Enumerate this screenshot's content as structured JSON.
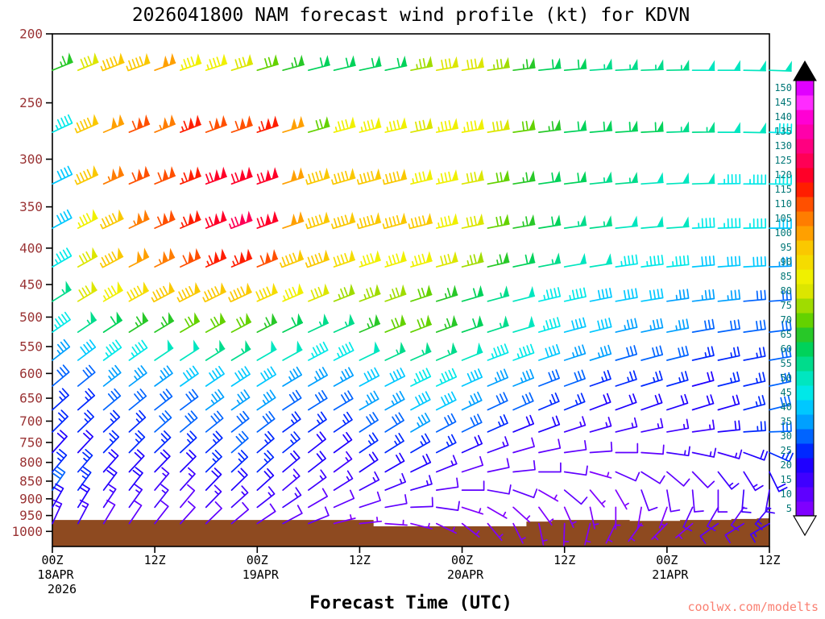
{
  "chart_data": {
    "type": "wind-barb-time-height",
    "title": "2026041800 NAM forecast wind profile (kt) for KDVN",
    "watermark": "coolwx.com/modelts",
    "x_axis": {
      "label": "Forecast Time (UTC)",
      "range_hours": [
        0,
        84
      ],
      "tick_hours": [
        0,
        12,
        24,
        36,
        48,
        60,
        72,
        84
      ],
      "tick_labels": [
        "00Z",
        "12Z",
        "00Z",
        "12Z",
        "00Z",
        "12Z",
        "00Z",
        "12Z"
      ],
      "date_labels": [
        {
          "hour": 0,
          "label": "18APR",
          "sub": "2026"
        },
        {
          "hour": 24,
          "label": "19APR"
        },
        {
          "hour": 48,
          "label": "20APR"
        },
        {
          "hour": 72,
          "label": "21APR"
        }
      ]
    },
    "y_axis": {
      "unit": "hPa",
      "scale": "log",
      "range": [
        200,
        1050
      ],
      "ticks": [
        200,
        250,
        300,
        350,
        400,
        450,
        500,
        550,
        600,
        650,
        700,
        750,
        800,
        850,
        900,
        950,
        1000
      ]
    },
    "barbs": {
      "time_hours": [
        0,
        3,
        6,
        9,
        12,
        15,
        18,
        21,
        24,
        27,
        30,
        33,
        36,
        39,
        42,
        45,
        48,
        51,
        54,
        57,
        60,
        63,
        66,
        69,
        72,
        75,
        78,
        81,
        84
      ],
      "levels_hpa": [
        225,
        275,
        325,
        375,
        425,
        475,
        525,
        575,
        625,
        675,
        725,
        775,
        825,
        875,
        925,
        975
      ],
      "speeds_kt": [
        [
          65,
          80,
          95,
          95,
          100,
          85,
          85,
          80,
          70,
          65,
          60,
          60,
          60,
          60,
          75,
          80,
          80,
          75,
          65,
          60,
          60,
          55,
          55,
          55,
          55,
          50,
          50,
          50,
          50
        ],
        [
          45,
          95,
          100,
          110,
          105,
          115,
          110,
          110,
          115,
          100,
          70,
          85,
          85,
          85,
          80,
          85,
          85,
          80,
          70,
          65,
          60,
          60,
          60,
          60,
          55,
          55,
          50,
          50,
          45
        ],
        [
          40,
          95,
          105,
          110,
          110,
          115,
          120,
          120,
          120,
          100,
          95,
          95,
          95,
          95,
          85,
          85,
          80,
          70,
          65,
          60,
          60,
          55,
          55,
          50,
          50,
          50,
          45,
          45,
          45
        ],
        [
          40,
          85,
          95,
          105,
          110,
          115,
          120,
          125,
          120,
          100,
          95,
          95,
          95,
          95,
          95,
          85,
          80,
          70,
          65,
          60,
          55,
          55,
          50,
          50,
          50,
          45,
          45,
          45,
          40
        ],
        [
          45,
          80,
          95,
          100,
          105,
          110,
          115,
          115,
          110,
          95,
          95,
          90,
          85,
          85,
          85,
          80,
          75,
          65,
          60,
          55,
          50,
          50,
          45,
          45,
          45,
          40,
          40,
          40,
          35
        ],
        [
          55,
          80,
          85,
          90,
          95,
          95,
          95,
          95,
          90,
          85,
          80,
          75,
          75,
          75,
          70,
          65,
          60,
          55,
          50,
          45,
          45,
          40,
          40,
          40,
          35,
          35,
          35,
          30,
          30
        ],
        [
          45,
          55,
          60,
          65,
          65,
          70,
          70,
          70,
          65,
          60,
          55,
          55,
          65,
          70,
          70,
          65,
          60,
          55,
          50,
          45,
          40,
          40,
          35,
          35,
          35,
          30,
          30,
          30,
          30
        ],
        [
          35,
          40,
          45,
          45,
          50,
          50,
          55,
          55,
          50,
          50,
          45,
          45,
          50,
          55,
          55,
          55,
          50,
          45,
          45,
          40,
          35,
          35,
          30,
          30,
          30,
          25,
          25,
          25,
          30
        ],
        [
          30,
          30,
          35,
          35,
          35,
          40,
          40,
          40,
          40,
          35,
          35,
          35,
          40,
          40,
          45,
          45,
          40,
          35,
          35,
          30,
          30,
          25,
          25,
          25,
          25,
          20,
          25,
          25,
          30
        ],
        [
          25,
          25,
          30,
          30,
          30,
          30,
          35,
          35,
          35,
          30,
          30,
          30,
          35,
          35,
          40,
          40,
          35,
          30,
          30,
          25,
          25,
          20,
          20,
          20,
          20,
          20,
          20,
          25,
          30
        ],
        [
          25,
          25,
          25,
          25,
          30,
          30,
          30,
          30,
          30,
          25,
          25,
          25,
          30,
          30,
          35,
          30,
          30,
          25,
          20,
          20,
          15,
          15,
          15,
          15,
          15,
          15,
          20,
          25,
          30
        ],
        [
          20,
          20,
          25,
          25,
          25,
          25,
          25,
          30,
          25,
          25,
          20,
          20,
          25,
          25,
          25,
          25,
          20,
          15,
          10,
          10,
          10,
          10,
          10,
          10,
          15,
          15,
          15,
          20,
          25
        ],
        [
          25,
          25,
          20,
          20,
          20,
          20,
          25,
          25,
          25,
          20,
          20,
          15,
          20,
          20,
          20,
          15,
          10,
          10,
          10,
          10,
          10,
          5,
          10,
          10,
          10,
          10,
          15,
          15,
          20
        ],
        [
          30,
          25,
          20,
          20,
          15,
          15,
          20,
          20,
          20,
          15,
          15,
          15,
          15,
          15,
          15,
          10,
          10,
          10,
          10,
          5,
          10,
          5,
          5,
          10,
          10,
          10,
          10,
          15,
          15
        ],
        [
          20,
          20,
          15,
          15,
          15,
          10,
          15,
          15,
          15,
          15,
          10,
          10,
          10,
          10,
          10,
          10,
          5,
          5,
          5,
          5,
          5,
          5,
          5,
          5,
          5,
          10,
          10,
          10,
          15
        ],
        [
          15,
          15,
          10,
          10,
          10,
          10,
          10,
          10,
          10,
          10,
          10,
          5,
          5,
          5,
          5,
          5,
          5,
          5,
          5,
          5,
          5,
          5,
          5,
          5,
          5,
          5,
          10,
          10,
          15
        ]
      ],
      "dirs_from_deg": [
        [
          248,
          248,
          249,
          250,
          250,
          251,
          252,
          253,
          254,
          255,
          256,
          257,
          258,
          258,
          259,
          260,
          261,
          262,
          263,
          264,
          265,
          266,
          267,
          268,
          269,
          270,
          270,
          271,
          272
        ],
        [
          245,
          246,
          247,
          248,
          248,
          249,
          250,
          251,
          252,
          253,
          254,
          255,
          256,
          257,
          258,
          259,
          260,
          261,
          262,
          263,
          264,
          265,
          266,
          267,
          268,
          269,
          270,
          271,
          272
        ],
        [
          244,
          245,
          246,
          247,
          248,
          249,
          250,
          250,
          251,
          252,
          253,
          254,
          255,
          256,
          257,
          258,
          259,
          260,
          261,
          262,
          263,
          264,
          265,
          266,
          267,
          268,
          269,
          270,
          271
        ],
        [
          242,
          243,
          244,
          245,
          246,
          247,
          248,
          249,
          250,
          251,
          252,
          253,
          254,
          255,
          256,
          257,
          258,
          259,
          260,
          261,
          262,
          263,
          264,
          265,
          266,
          267,
          268,
          269,
          270
        ],
        [
          240,
          241,
          242,
          243,
          244,
          245,
          246,
          247,
          248,
          249,
          250,
          251,
          252,
          253,
          254,
          255,
          256,
          257,
          258,
          259,
          260,
          261,
          262,
          263,
          264,
          265,
          266,
          267,
          268
        ],
        [
          238,
          239,
          240,
          241,
          242,
          243,
          244,
          245,
          246,
          247,
          248,
          249,
          250,
          251,
          252,
          253,
          254,
          255,
          256,
          257,
          258,
          259,
          260,
          261,
          262,
          263,
          264,
          265,
          266
        ],
        [
          235,
          236,
          237,
          238,
          239,
          240,
          241,
          242,
          243,
          244,
          245,
          246,
          247,
          248,
          249,
          250,
          251,
          252,
          253,
          254,
          255,
          256,
          257,
          258,
          259,
          260,
          261,
          262,
          263
        ],
        [
          232,
          233,
          234,
          235,
          236,
          237,
          238,
          239,
          240,
          241,
          242,
          243,
          244,
          245,
          246,
          247,
          248,
          249,
          250,
          251,
          252,
          253,
          254,
          255,
          256,
          257,
          258,
          259,
          260
        ],
        [
          230,
          231,
          232,
          233,
          234,
          235,
          236,
          237,
          238,
          239,
          240,
          241,
          242,
          243,
          244,
          245,
          246,
          247,
          248,
          249,
          250,
          251,
          252,
          253,
          254,
          255,
          256,
          257,
          258
        ],
        [
          228,
          229,
          230,
          231,
          232,
          233,
          234,
          235,
          236,
          237,
          238,
          239,
          240,
          241,
          242,
          243,
          244,
          245,
          246,
          247,
          248,
          249,
          250,
          251,
          252,
          253,
          254,
          255,
          256
        ],
        [
          225,
          226,
          227,
          228,
          229,
          230,
          231,
          232,
          233,
          234,
          235,
          236,
          237,
          238,
          240,
          242,
          244,
          246,
          248,
          250,
          252,
          254,
          256,
          258,
          260,
          262,
          264,
          266,
          268
        ],
        [
          222,
          223,
          224,
          225,
          226,
          227,
          228,
          229,
          230,
          231,
          232,
          234,
          236,
          238,
          240,
          243,
          246,
          250,
          254,
          258,
          262,
          266,
          270,
          274,
          278,
          282,
          286,
          290,
          294
        ],
        [
          220,
          221,
          222,
          223,
          224,
          225,
          226,
          227,
          228,
          230,
          232,
          234,
          236,
          240,
          244,
          248,
          252,
          258,
          264,
          270,
          278,
          286,
          294,
          302,
          310,
          316,
          322,
          328,
          334
        ],
        [
          215,
          216,
          217,
          218,
          220,
          222,
          224,
          226,
          228,
          230,
          234,
          238,
          242,
          248,
          254,
          262,
          270,
          280,
          290,
          300,
          310,
          320,
          330,
          340,
          350,
          355,
          0,
          5,
          10
        ],
        [
          210,
          212,
          214,
          216,
          218,
          220,
          224,
          228,
          232,
          236,
          240,
          246,
          252,
          260,
          268,
          278,
          288,
          300,
          312,
          324,
          336,
          348,
          0,
          10,
          20,
          25,
          30,
          35,
          40
        ],
        [
          205,
          208,
          211,
          214,
          218,
          222,
          226,
          230,
          236,
          242,
          248,
          256,
          264,
          274,
          284,
          296,
          308,
          320,
          334,
          348,
          2,
          14,
          26,
          36,
          44,
          50,
          55,
          58,
          60
        ]
      ]
    },
    "terrain_surface_hpa": [
      965,
      965,
      965,
      965,
      965,
      965,
      965,
      965,
      965,
      965,
      965,
      965,
      965,
      985,
      985,
      985,
      985,
      985,
      985,
      970,
      965,
      965,
      965,
      968,
      968,
      965,
      965,
      962,
      960
    ],
    "colorbar": {
      "min": 5,
      "max": 150,
      "step": 5,
      "values": [
        5,
        10,
        15,
        20,
        25,
        30,
        35,
        40,
        45,
        50,
        55,
        60,
        65,
        70,
        75,
        80,
        85,
        90,
        95,
        100,
        105,
        110,
        115,
        120,
        125,
        130,
        135,
        140,
        145,
        150
      ],
      "colors": [
        "#7f00ff",
        "#5f00ff",
        "#3f00ff",
        "#1f00ff",
        "#0028ff",
        "#0064ff",
        "#00a0ff",
        "#00c8ff",
        "#00e8e8",
        "#00e6c0",
        "#00dc8c",
        "#00d25a",
        "#28c828",
        "#64d200",
        "#a0dc00",
        "#dce600",
        "#f0f000",
        "#f5dc00",
        "#fac800",
        "#ffa000",
        "#ff7d00",
        "#ff5000",
        "#ff1e00",
        "#ff0028",
        "#ff0055",
        "#ff0080",
        "#ff00aa",
        "#ff00d4",
        "#ff2bff",
        "#e000ff"
      ]
    },
    "colors": {
      "background": "#ffffff",
      "frame": "#000000",
      "title": "#000000",
      "y_tick_label": "#9a3334",
      "x_tick_label": "#000000",
      "colorbar_label": "#007777",
      "terrain": "#8e4a20",
      "watermark": "#fa8072"
    }
  }
}
